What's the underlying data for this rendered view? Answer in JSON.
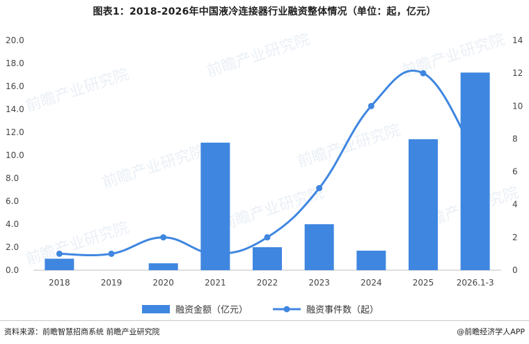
{
  "page": {
    "title": "图表1：2018-2026年中国液冷连接器行业融资整体情况（单位：起，亿元）",
    "source": "资料来源：前瞻智慧招商系统  前瞻产业研究院",
    "credit": "@前瞻经济学人APP",
    "watermark": "前瞻产业研究院"
  },
  "colors": {
    "bar": "#3F86E0",
    "line": "#3F86E0",
    "axis_text": "#444444",
    "axis_line": "#bfbfbf"
  },
  "chart_data": {
    "type": "bar",
    "title": "图表1：2018-2026年中国液冷连接器行业融资整体情况（单位：起，亿元）",
    "categories": [
      "2018",
      "2019",
      "2020",
      "2021",
      "2022",
      "2023",
      "2024",
      "2025",
      "2026.1-3"
    ],
    "series": [
      {
        "name": "融资金额（亿元）",
        "type": "bar",
        "axis": "left",
        "values": [
          1.0,
          0.0,
          0.6,
          11.1,
          2.0,
          4.0,
          1.7,
          11.4,
          17.2
        ]
      },
      {
        "name": "融资事件数（起）",
        "type": "line",
        "smooth": true,
        "axis": "right",
        "values": [
          1,
          1,
          2,
          1,
          2,
          5,
          10,
          12,
          7
        ]
      }
    ],
    "ylim_left": [
      0,
      20
    ],
    "yticks_left": [
      "0.0",
      "2.0",
      "4.0",
      "6.0",
      "8.0",
      "10.0",
      "12.0",
      "14.0",
      "16.0",
      "18.0",
      "20.0"
    ],
    "ylim_right": [
      0,
      14
    ],
    "yticks_right": [
      "0",
      "2",
      "4",
      "6",
      "8",
      "10",
      "12",
      "14"
    ],
    "grid": false,
    "legend": "bottom"
  }
}
